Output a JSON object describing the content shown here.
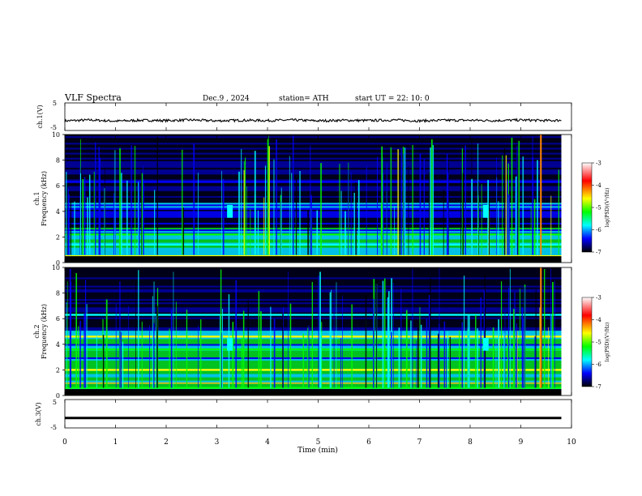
{
  "header": {
    "title": "VLF  Spectra",
    "date": "Dec.9  , 2024",
    "station": "station= ATH",
    "start": "start  UT  =   22: 10: 0"
  },
  "colorbar": {
    "label": "log(PSD)(V²/Hz)",
    "ticks": [
      "-3",
      "-4",
      "-5",
      "-6",
      "-7"
    ],
    "colors": [
      "#ffffff",
      "#ff0000",
      "#ffff00",
      "#00ff00",
      "#00ffff",
      "#0000ff",
      "#000000"
    ]
  },
  "chart_data": [
    {
      "type": "line",
      "ylabel": "ch.1(V)",
      "ylim": [
        -5,
        5
      ],
      "yticks": [
        "5",
        "-5"
      ],
      "x": [
        0,
        0.5,
        1,
        1.5,
        2,
        2.5,
        3,
        3.5,
        4,
        4.5,
        5,
        5.5,
        6,
        6.5,
        7,
        7.5,
        8,
        8.5,
        9,
        9.5,
        9.8
      ],
      "values": [
        -1.5,
        -1.2,
        -1.6,
        -1.3,
        -1.4,
        -1.2,
        -1.5,
        -1.3,
        -1.4,
        -1.2,
        -1.5,
        -1.3,
        -1.4,
        -1.2,
        -1.5,
        -1.3,
        -1.3,
        -1.4,
        -1.2,
        -1.4,
        -1.3
      ]
    },
    {
      "type": "heatmap",
      "ylabel_top": "ch.1",
      "ylabel": "Frequency  (kHz)",
      "ylim": [
        0,
        10
      ],
      "yticks": [
        "0",
        "2",
        "4",
        "6",
        "8",
        "10"
      ],
      "xlim": [
        0,
        10
      ],
      "value_range": [
        -7,
        -3
      ],
      "bands": [
        {
          "kHz": 0.5,
          "log_psd": -4.5
        },
        {
          "kHz": 1.4,
          "log_psd": -5.5
        },
        {
          "kHz": 2.2,
          "log_psd": -5.0
        },
        {
          "kHz": 4.2,
          "log_psd": -6.0
        },
        {
          "kHz": 6.3,
          "log_psd": -6.0
        }
      ]
    },
    {
      "type": "heatmap",
      "ylabel_top": "ch.2",
      "ylabel": "Frequency  (kHz)",
      "ylim": [
        0,
        10
      ],
      "yticks": [
        "0",
        "2",
        "4",
        "6",
        "8",
        "10"
      ],
      "xlim": [
        0,
        10
      ],
      "value_range": [
        -7,
        -3
      ],
      "bands": [
        {
          "kHz": 0.6,
          "log_psd": -5.0
        },
        {
          "kHz": 2.0,
          "log_psd": -4.0
        },
        {
          "kHz": 3.6,
          "log_psd": -4.7
        },
        {
          "kHz": 4.6,
          "log_psd": -4.5
        },
        {
          "kHz": 6.3,
          "log_psd": -5.5
        }
      ]
    },
    {
      "type": "line",
      "ylabel": "ch.3(V)",
      "ylim": [
        -5,
        5
      ],
      "yticks": [
        "5",
        "-5"
      ],
      "x": [
        0,
        9.8
      ],
      "values": [
        -1.5,
        -1.5
      ]
    }
  ],
  "xaxis": {
    "label": "Time  (min)",
    "ticks": [
      "0",
      "1",
      "2",
      "3",
      "4",
      "5",
      "6",
      "7",
      "8",
      "9",
      "10"
    ],
    "xlim": [
      0,
      10
    ]
  }
}
